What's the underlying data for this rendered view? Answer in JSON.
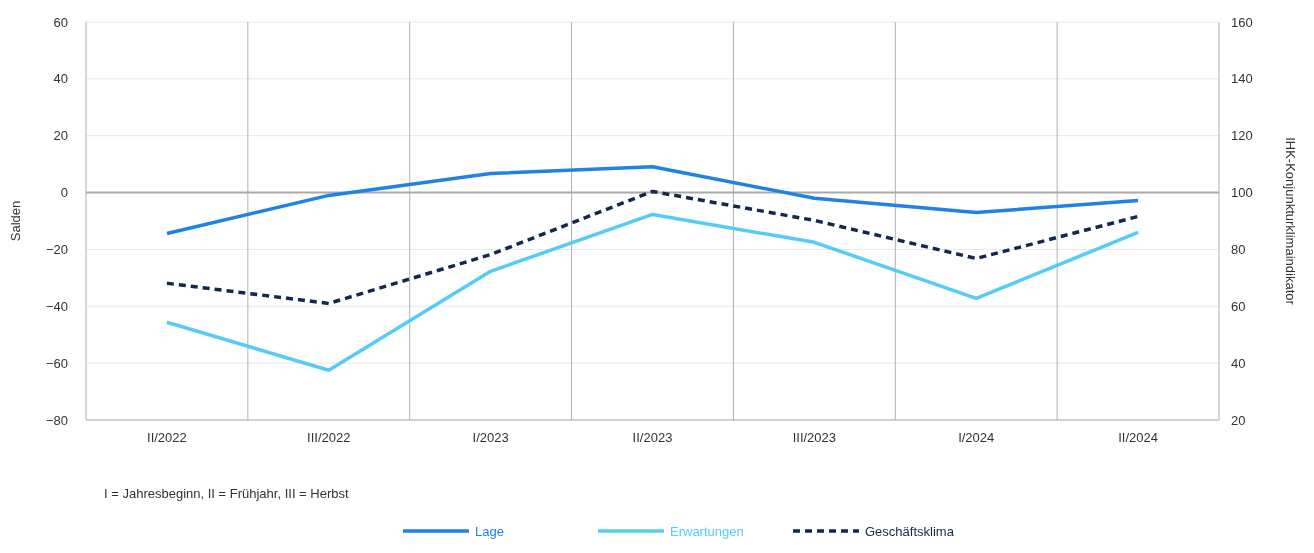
{
  "chart_data": {
    "type": "line",
    "categories": [
      "II/2022",
      "III/2022",
      "I/2023",
      "II/2023",
      "III/2023",
      "I/2024",
      "II/2024"
    ],
    "ylabel": "Salden",
    "y2label": "IHK-Konjunkturklimaindikator",
    "ylim": [
      -80,
      60
    ],
    "yticks": [
      -80,
      -60,
      -40,
      -20,
      0,
      20,
      40,
      60
    ],
    "y2lim": [
      20,
      160
    ],
    "y2ticks": [
      20,
      40,
      60,
      80,
      100,
      120,
      140,
      160
    ],
    "ref_lines": [
      {
        "axis": "y",
        "value": 0,
        "color": "#aaaaaa"
      }
    ],
    "grid": true,
    "legend": "bottom",
    "marker": "none",
    "annotations": [
      "I = Jahresbeginn, II = Frühjahr, III = Herbst"
    ],
    "series": [
      {
        "name": "Lage",
        "color": "#1e82e6",
        "values": [
          -14.4,
          -1,
          6.7,
          9.1,
          -2,
          -7,
          -2.8
        ]
      },
      {
        "name": "Erwartungen",
        "color": "#55ccf5",
        "values": [
          -45.6,
          -62.5,
          -27.7,
          -7.7,
          -17.5,
          -37.2,
          -14
        ]
      },
      {
        "name": "Geschäftsklima",
        "color": "#13294b",
        "axis": "y2",
        "line_style": "dashed",
        "values": [
          68.1,
          61,
          78.2,
          100.4,
          90.2,
          76.8,
          91.6
        ]
      }
    ]
  }
}
